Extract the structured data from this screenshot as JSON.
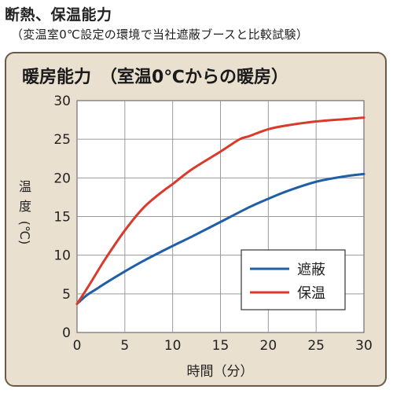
{
  "header": {
    "title": "断熱、保温能力",
    "subtitle": "（変温室0℃設定の環境で当社遮蔽ブースと比較試験）"
  },
  "chart_data": {
    "type": "line",
    "title": "暖房能力　（室温0℃からの暖房）",
    "xlabel": "時間（分）",
    "ylabel": [
      "温",
      "度",
      "(℃)"
    ],
    "xlim": [
      0,
      30
    ],
    "ylim": [
      0,
      30
    ],
    "xticks": [
      0,
      5,
      10,
      15,
      20,
      25,
      30
    ],
    "yticks": [
      0,
      5,
      10,
      15,
      20,
      25,
      30
    ],
    "grid": true,
    "legend_position": "lower-right",
    "series": [
      {
        "name": "遮蔽",
        "color": "#1f5fa8",
        "x": [
          0,
          1,
          2,
          3,
          5,
          7,
          10,
          12,
          15,
          18,
          20,
          22,
          25,
          28,
          30
        ],
        "y": [
          3.7,
          4.8,
          5.6,
          6.4,
          7.9,
          9.3,
          11.2,
          12.4,
          14.3,
          16.2,
          17.3,
          18.3,
          19.5,
          20.2,
          20.5
        ]
      },
      {
        "name": "保温",
        "color": "#d93a2b",
        "x": [
          0,
          1,
          2,
          3,
          5,
          7,
          9,
          10,
          12,
          15,
          17,
          18,
          20,
          22,
          25,
          28,
          30
        ],
        "y": [
          3.7,
          5.6,
          7.6,
          9.6,
          13.2,
          16.2,
          18.3,
          19.2,
          21.1,
          23.4,
          25.0,
          25.4,
          26.3,
          26.8,
          27.3,
          27.6,
          27.8
        ]
      }
    ]
  }
}
